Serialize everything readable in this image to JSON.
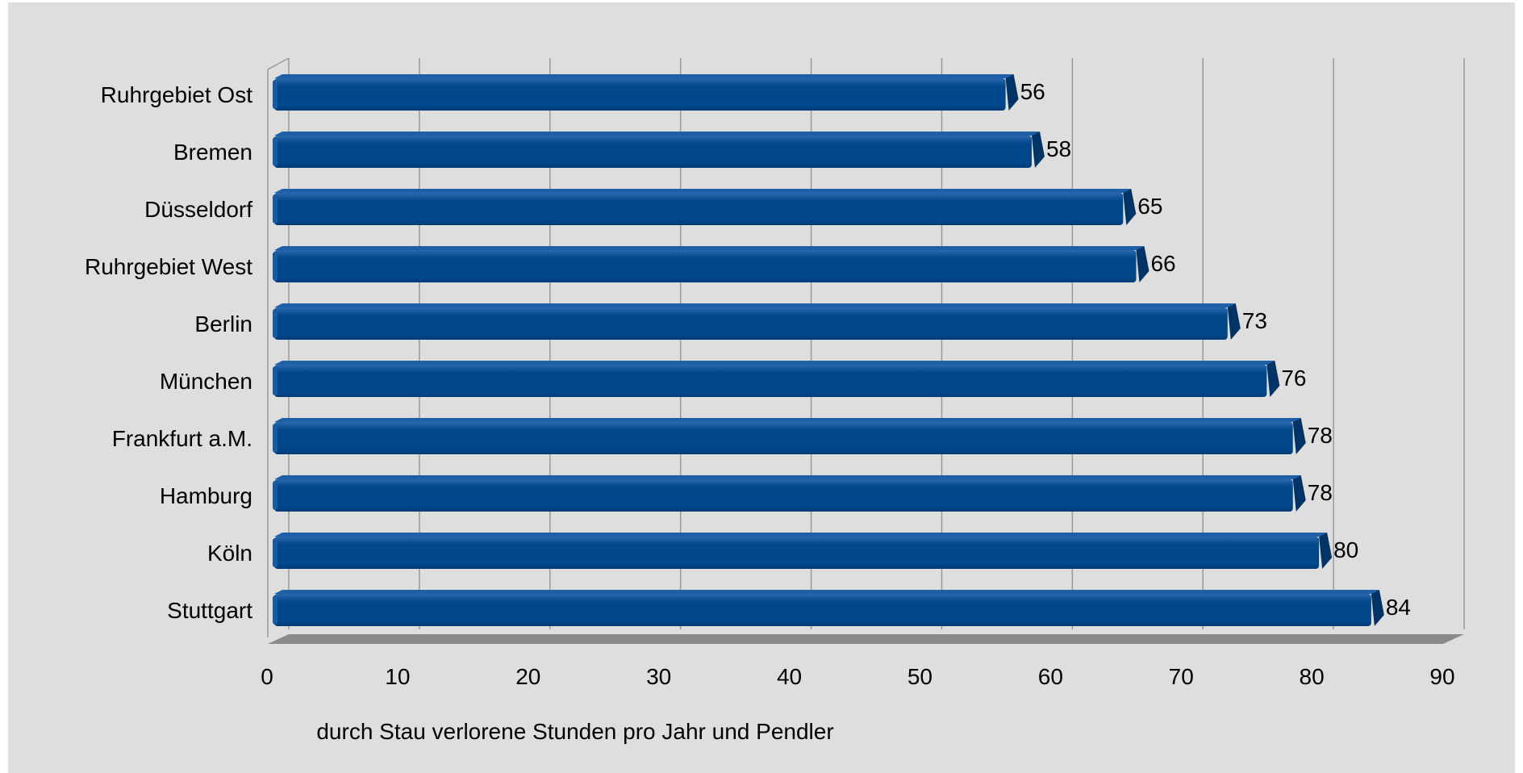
{
  "chart_data": {
    "type": "bar",
    "orientation": "horizontal",
    "categories": [
      "Ruhrgebiet Ost",
      "Bremen",
      "Düsseldorf",
      "Ruhrgebiet West",
      "Berlin",
      "München",
      "Frankfurt a.M.",
      "Hamburg",
      "Köln",
      "Stuttgart"
    ],
    "values": [
      56,
      58,
      65,
      66,
      73,
      76,
      78,
      78,
      80,
      84
    ],
    "title": "",
    "xlabel": "durch Stau verlorene Stunden pro Jahr und Pendler",
    "ylabel": "",
    "xlim": [
      0,
      90
    ],
    "xticks": [
      "0",
      "10",
      "20",
      "30",
      "40",
      "50",
      "60",
      "70",
      "80",
      "90"
    ],
    "grid": "vertical",
    "legend": "none",
    "colors": {
      "background": "#dedede",
      "bar": "#00478c",
      "bar_top": "#1e5fa8",
      "bar_end": "#003366",
      "gridline": "#9a9a9a",
      "floor": "#8a8a8a"
    }
  }
}
